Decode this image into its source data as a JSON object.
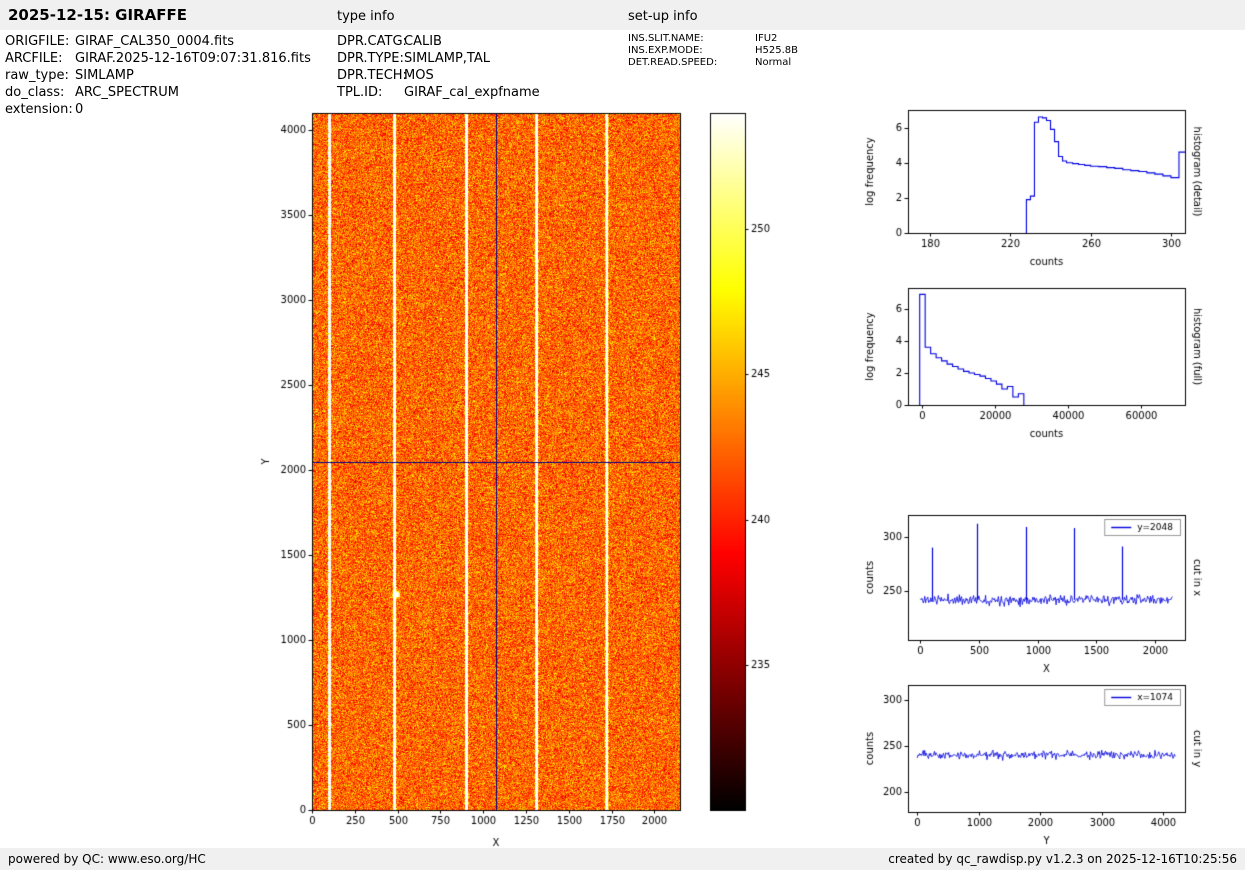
{
  "header": {
    "title": "2025-12-15: GIRAFFE",
    "type_info_label": "type info",
    "setup_info_label": "set-up info"
  },
  "file_info": [
    {
      "label": "ORIGFILE:",
      "value": "GIRAF_CAL350_0004.fits"
    },
    {
      "label": "ARCFILE:",
      "value": "GIRAF.2025-12-16T09:07:31.816.fits"
    },
    {
      "label": "raw_type:",
      "value": "SIMLAMP"
    },
    {
      "label": "do_class:",
      "value": "ARC_SPECTRUM"
    },
    {
      "label": "extension:",
      "value": "0"
    }
  ],
  "type_info": [
    {
      "label": "DPR.CATG:",
      "value": "CALIB"
    },
    {
      "label": "DPR.TYPE:",
      "value": "SIMLAMP,TAL"
    },
    {
      "label": "DPR.TECH:",
      "value": "MOS"
    },
    {
      "label": "TPL.ID:",
      "value": "GIRAF_cal_expfname"
    }
  ],
  "setup_info": [
    {
      "label": "INS.SLIT.NAME:",
      "value": "IFU2"
    },
    {
      "label": "INS.EXP.MODE:",
      "value": "H525.8B"
    },
    {
      "label": "DET.READ.SPEED:",
      "value": "Normal"
    }
  ],
  "footer": {
    "left": "powered by QC: www.eso.org/HC",
    "right": "created by qc_rawdisp.py v1.2.3 on 2025-12-16T10:25:56"
  },
  "colors": {
    "plot_line": "#0000dd",
    "crosshair": "#00008b",
    "bar_bg": "#f0f0f0"
  },
  "chart_data": [
    {
      "id": "detector-image",
      "type": "heatmap",
      "xlabel": "X",
      "ylabel": "Y",
      "xlim": [
        0,
        2150
      ],
      "ylim": [
        0,
        4100
      ],
      "xticks": [
        0,
        250,
        500,
        750,
        1000,
        1250,
        1500,
        1750,
        2000
      ],
      "yticks": [
        0,
        500,
        1000,
        1500,
        2000,
        2500,
        3000,
        3500,
        4000
      ],
      "colormap": "hot",
      "value_range": [
        230,
        254
      ],
      "background_level": 242.5,
      "noise_sigma": 2.3,
      "emission_lines_x": [
        100,
        480,
        900,
        1310,
        1720
      ],
      "emission_line_peak": 300,
      "hot_spot": {
        "x": 490,
        "y": 1270
      },
      "crosshair": {
        "x": 1074,
        "y": 2048
      },
      "colorbar_ticks": [
        235,
        240,
        245,
        250
      ]
    },
    {
      "id": "histogram-detail",
      "type": "step-histogram",
      "right_label": "histogram (detail)",
      "xlabel": "counts",
      "ylabel": "log frequency",
      "xlim": [
        169,
        307
      ],
      "ylim": [
        0,
        7
      ],
      "xticks": [
        180,
        220,
        260,
        300
      ],
      "yticks": [
        0,
        2,
        4,
        6
      ],
      "bin_edges": [
        228,
        230,
        232,
        234,
        236,
        238,
        240,
        242,
        244,
        246,
        248,
        251,
        254,
        257,
        260,
        264,
        268,
        272,
        276,
        280,
        284,
        288,
        292,
        296,
        300,
        304,
        309
      ],
      "bin_heights": [
        1.9,
        2.1,
        6.3,
        6.6,
        6.55,
        6.4,
        5.9,
        5.2,
        4.35,
        4.1,
        4.0,
        3.95,
        3.9,
        3.85,
        3.8,
        3.78,
        3.72,
        3.68,
        3.6,
        3.55,
        3.5,
        3.42,
        3.35,
        3.25,
        3.15,
        4.6
      ]
    },
    {
      "id": "histogram-full",
      "type": "step-histogram",
      "right_label": "histogram (full)",
      "xlabel": "counts",
      "ylabel": "log frequency",
      "xlim": [
        -3800,
        72000
      ],
      "ylim": [
        0,
        7.3
      ],
      "xticks": [
        0,
        20000,
        40000,
        60000
      ],
      "yticks": [
        0,
        2,
        4,
        6
      ],
      "bin_edges": [
        -600,
        900,
        2400,
        3900,
        5400,
        6900,
        8400,
        9900,
        11400,
        12900,
        14400,
        15900,
        17400,
        18900,
        20400,
        21900,
        23400,
        24900,
        26400,
        27900
      ],
      "bin_heights": [
        6.9,
        3.6,
        3.2,
        2.95,
        2.75,
        2.55,
        2.4,
        2.25,
        2.1,
        2.0,
        1.9,
        1.8,
        1.65,
        1.5,
        1.3,
        1.0,
        1.15,
        0.5,
        0.7
      ]
    },
    {
      "id": "cut-in-x",
      "type": "noisy-line",
      "right_label": "cut in x",
      "legend": "y=2048",
      "xlabel": "X",
      "ylabel": "counts",
      "xlim": [
        -105,
        2255
      ],
      "ylim": [
        205,
        320
      ],
      "xticks": [
        0,
        500,
        1000,
        1500,
        2000
      ],
      "yticks": [
        250,
        300
      ],
      "baseline": 242,
      "noise_amp": 2.2,
      "n_points": 2150,
      "spikes": [
        {
          "x": 100,
          "peak": 290
        },
        {
          "x": 480,
          "peak": 312
        },
        {
          "x": 900,
          "peak": 309
        },
        {
          "x": 1310,
          "peak": 308
        },
        {
          "x": 1720,
          "peak": 291
        }
      ]
    },
    {
      "id": "cut-in-y",
      "type": "noisy-line",
      "right_label": "cut in y",
      "legend": "x=1074",
      "xlabel": "Y",
      "ylabel": "counts",
      "xlim": [
        -150,
        4350
      ],
      "ylim": [
        178,
        316
      ],
      "xticks": [
        0,
        1000,
        2000,
        3000,
        4000
      ],
      "yticks": [
        200,
        250,
        300
      ],
      "baseline": 240,
      "noise_amp": 2.2,
      "n_points": 4200,
      "spikes": []
    }
  ]
}
